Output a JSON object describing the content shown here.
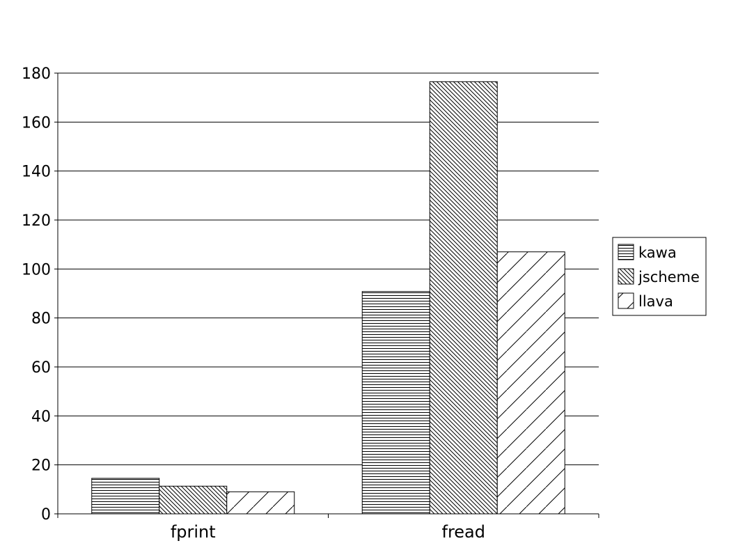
{
  "chart_data": {
    "type": "bar",
    "title": "",
    "xlabel": "",
    "ylabel": "",
    "categories": [
      "fprint",
      "fread"
    ],
    "series": [
      {
        "name": "kawa",
        "values": [
          14.5,
          90.8
        ],
        "pattern": "horizontal"
      },
      {
        "name": "jscheme",
        "values": [
          11.3,
          176.5
        ],
        "pattern": "diagonal-down"
      },
      {
        "name": "llava",
        "values": [
          9.0,
          107.0
        ],
        "pattern": "diagonal-up"
      }
    ],
    "ylim": [
      0,
      180
    ],
    "yticks": [
      "0",
      "20",
      "40",
      "60",
      "80",
      "100",
      "120",
      "140",
      "160",
      "180"
    ],
    "grid": true,
    "legend": "right",
    "colors": {
      "bar_fill": "#ffffff",
      "stroke": "#000000",
      "grid": "#000000"
    }
  }
}
